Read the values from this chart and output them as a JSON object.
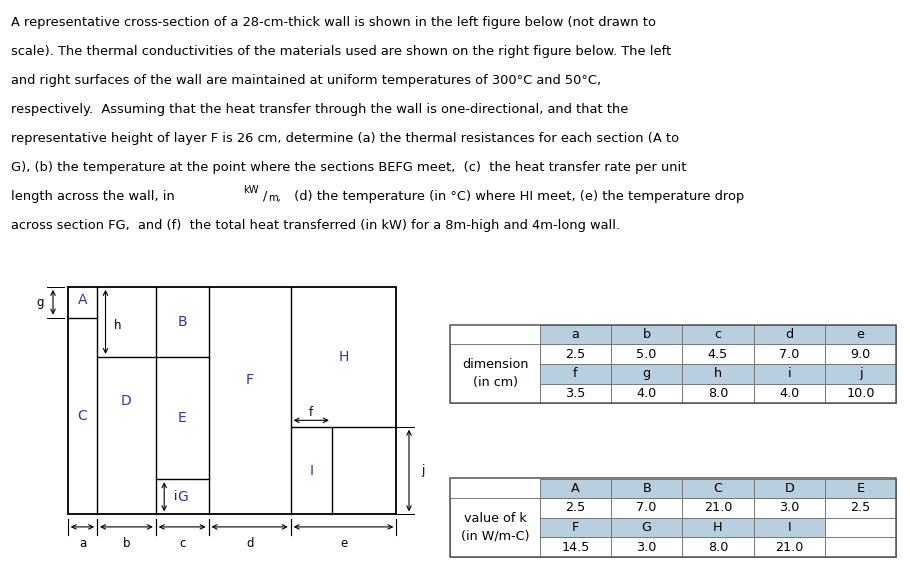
{
  "blue_color": "#3333aa",
  "header_bg": "#b8cfe0",
  "dim_table": {
    "header_row": [
      "a",
      "b",
      "c",
      "d",
      "e"
    ],
    "row1_label": "dimension",
    "row1_sublabel": "(in cm)",
    "row1_values": [
      "2.5",
      "5.0",
      "4.5",
      "7.0",
      "9.0"
    ],
    "row2_header": [
      "f",
      "g",
      "h",
      "i",
      "j"
    ],
    "row2_values": [
      "3.5",
      "4.0",
      "8.0",
      "4.0",
      "10.0"
    ]
  },
  "k_table": {
    "header_row": [
      "A",
      "B",
      "C",
      "D",
      "E"
    ],
    "row1_label": "value of k",
    "row1_sublabel": "(in W/m-C)",
    "row1_values": [
      "2.5",
      "7.0",
      "21.0",
      "3.0",
      "2.5"
    ],
    "row2_header": [
      "F",
      "G",
      "H",
      "I",
      ""
    ],
    "row2_values": [
      "14.5",
      "3.0",
      "8.0",
      "21.0",
      ""
    ]
  },
  "title_lines": [
    "A representative cross-section of a 28-cm-thick wall is shown in the left figure below (not drawn to",
    "scale). The thermal conductivities of the materials used are shown on the right figure below. The left",
    "and right surfaces of the wall are maintained at uniform temperatures of 300°C and 50°C,",
    "respectively.  Assuming that the heat transfer through the wall is one-directional, and that the",
    "representative height of layer F is 26 cm, determine (a) the thermal resistances for each section (A to",
    "G), (b) the temperature at the point where the sections BEFG meet,  (c)  the heat transfer rate per unit",
    "length across the wall, in kW/m, (d) the temperature (in °C) where HI meet, (e) the temperature drop",
    "across section FG,  and (f)  the total heat transferred (in kW) for a 8m-high and 4m-long wall."
  ]
}
